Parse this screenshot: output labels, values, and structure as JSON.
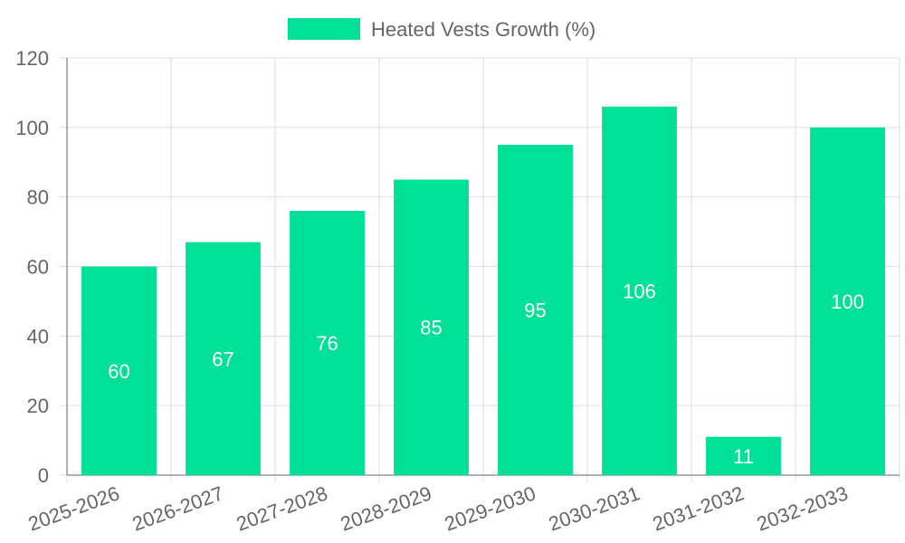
{
  "chart_data": {
    "type": "bar",
    "categories": [
      "2025-2026",
      "2026-2027",
      "2027-2028",
      "2028-2029",
      "2029-2030",
      "2030-2031",
      "2031-2032",
      "2032-2033"
    ],
    "series": [
      {
        "name": "Heated Vests Growth (%)",
        "values": [
          60,
          67,
          76,
          85,
          95,
          106,
          11,
          100
        ]
      }
    ],
    "ylim": [
      0,
      120
    ],
    "yticks": [
      0,
      20,
      40,
      60,
      80,
      100,
      120
    ],
    "grid": true,
    "legend_position": "top",
    "data_labels": true,
    "bar_color": "#00e096",
    "grid_color": "#dddddd",
    "text_color": "#666666"
  }
}
